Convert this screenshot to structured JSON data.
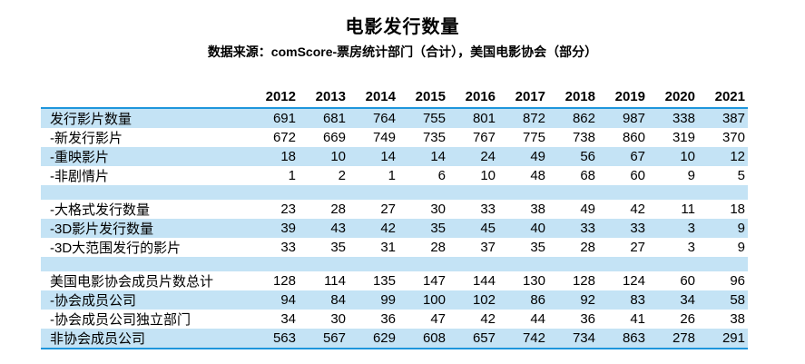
{
  "title": "电影发行数量",
  "subtitle": "数据来源：comScore-票房统计部门（合计），美国电影协会（部分）",
  "colors": {
    "stripe_fill": "#C4E3F5",
    "rule_line": "#1E96DC",
    "text": "#000000"
  },
  "chart_data": {
    "type": "table",
    "title": "电影发行数量",
    "source": "数据来源：comScore-票房统计部门（合计），美国电影协会（部分）",
    "columns": [
      "2012",
      "2013",
      "2014",
      "2015",
      "2016",
      "2017",
      "2018",
      "2019",
      "2020",
      "2021"
    ],
    "rows": [
      {
        "label": "发行影片数量",
        "values": [
          691,
          681,
          764,
          755,
          801,
          872,
          862,
          987,
          338,
          387
        ]
      },
      {
        "label": "-新发行影片",
        "values": [
          672,
          669,
          749,
          735,
          767,
          775,
          738,
          860,
          319,
          370
        ]
      },
      {
        "label": "-重映影片",
        "values": [
          18,
          10,
          14,
          14,
          24,
          49,
          56,
          67,
          10,
          12
        ]
      },
      {
        "label": "-非剧情片",
        "values": [
          1,
          2,
          1,
          6,
          10,
          48,
          68,
          60,
          9,
          5
        ]
      },
      {
        "label": "",
        "values": []
      },
      {
        "label": "-大格式发行数量",
        "values": [
          23,
          28,
          27,
          30,
          33,
          38,
          49,
          42,
          11,
          18
        ]
      },
      {
        "label": "-3D影片发行数量",
        "values": [
          39,
          43,
          42,
          35,
          45,
          40,
          33,
          33,
          3,
          9
        ]
      },
      {
        "label": "-3D大范围发行的影片",
        "values": [
          33,
          35,
          31,
          28,
          37,
          35,
          28,
          27,
          3,
          9
        ]
      },
      {
        "label": "",
        "values": []
      },
      {
        "label": "美国电影协会成员片数总计",
        "values": [
          128,
          114,
          135,
          147,
          144,
          130,
          128,
          124,
          60,
          96
        ]
      },
      {
        "label": "-协会成员公司",
        "values": [
          94,
          84,
          99,
          100,
          102,
          86,
          92,
          83,
          34,
          58
        ]
      },
      {
        "label": "-协会成员公司独立部门",
        "values": [
          34,
          30,
          36,
          47,
          42,
          44,
          36,
          41,
          26,
          38
        ]
      },
      {
        "label": "非协会成员公司",
        "values": [
          563,
          567,
          629,
          608,
          657,
          742,
          734,
          863,
          278,
          291
        ]
      }
    ]
  }
}
